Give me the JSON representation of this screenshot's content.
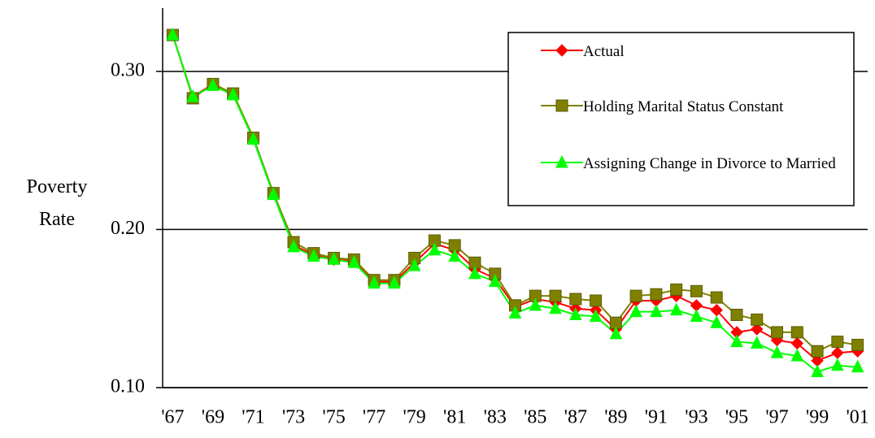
{
  "chart_data": {
    "type": "line",
    "y_label": "Poverty Rate",
    "categories": [
      "'67",
      null,
      "'69",
      null,
      "'71",
      null,
      "'73",
      null,
      "'75",
      null,
      "'77",
      null,
      "'79",
      null,
      "'81",
      null,
      "'83",
      null,
      "'85",
      null,
      "'87",
      null,
      "'89",
      null,
      "'91",
      null,
      "'93",
      null,
      "'95",
      null,
      "'97",
      null,
      "'99",
      null,
      "'01"
    ],
    "series": [
      {
        "name": "Actual",
        "color": "#ff0000",
        "marker": "diamond",
        "values": [
          0.323,
          0.284,
          0.292,
          0.286,
          0.258,
          0.223,
          0.19,
          0.184,
          0.181,
          0.18,
          0.167,
          0.167,
          0.179,
          0.191,
          0.187,
          0.175,
          0.169,
          0.151,
          0.156,
          0.154,
          0.15,
          0.149,
          0.137,
          0.155,
          0.155,
          0.158,
          0.152,
          0.149,
          0.135,
          0.137,
          0.13,
          0.128,
          0.117,
          0.122,
          0.123
        ]
      },
      {
        "name": "Holding Marital Status Constant",
        "color": "#808000",
        "marker": "square",
        "values": [
          0.323,
          0.283,
          0.292,
          0.286,
          0.258,
          0.223,
          0.192,
          0.185,
          0.182,
          0.181,
          0.168,
          0.168,
          0.182,
          0.193,
          0.19,
          0.179,
          0.172,
          0.152,
          0.158,
          0.158,
          0.156,
          0.155,
          0.141,
          0.158,
          0.159,
          0.162,
          0.161,
          0.157,
          0.146,
          0.143,
          0.135,
          0.135,
          0.123,
          0.129,
          0.127
        ]
      },
      {
        "name": "Assigning Change in Divorce to Married",
        "color": "#00ff00",
        "marker": "triangle",
        "values": [
          0.323,
          0.284,
          0.291,
          0.285,
          0.257,
          0.222,
          0.189,
          0.183,
          0.181,
          0.179,
          0.166,
          0.166,
          0.177,
          0.187,
          0.183,
          0.172,
          0.167,
          0.147,
          0.152,
          0.15,
          0.146,
          0.145,
          0.134,
          0.148,
          0.148,
          0.149,
          0.145,
          0.141,
          0.129,
          0.128,
          0.122,
          0.12,
          0.11,
          0.114,
          0.113
        ]
      }
    ],
    "ylim": [
      0.1,
      0.34
    ],
    "yticks": [
      {
        "value": 0.1,
        "label": "0.10"
      },
      {
        "value": 0.2,
        "label": "0.20"
      },
      {
        "value": 0.3,
        "label": "0.30"
      }
    ],
    "grid": true,
    "legend": "upper right"
  }
}
